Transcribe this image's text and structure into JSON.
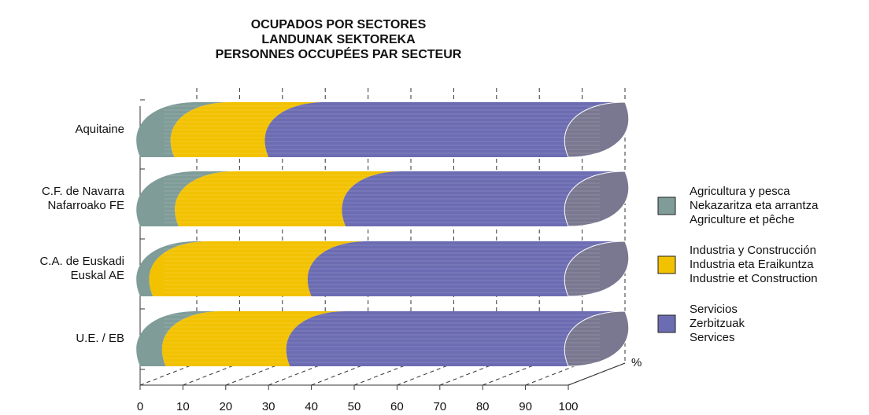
{
  "chart_data": {
    "type": "bar",
    "orientation": "horizontal",
    "stacked": true,
    "title": "OCUPADOS POR SECTORES\nLANDUNAK SEKTOREKA\nPERSONNES OCCUPÉES PAR SECTEUR",
    "x_label": "%",
    "categories": [
      "Aquitaine",
      "C.F. de Navarra\nNafarroako FE",
      "C.A. de Euskadi\nEuskal AE",
      "U.E. / EB"
    ],
    "series": [
      {
        "name": "Agricultura y pesca\nNekazaritza eta arrantza\nAgriculture et pêche",
        "color": "#7f9c98",
        "values": [
          8,
          9,
          3,
          6
        ]
      },
      {
        "name": "Industria y Construcción\nIndustria eta Eraikuntza\nIndustrie et Construction",
        "color": "#f2c200",
        "values": [
          22,
          39,
          37,
          29
        ]
      },
      {
        "name": "Servicios\nZerbitzuak\nServices",
        "color": "#6c6cb2",
        "values": [
          70,
          52,
          60,
          65
        ]
      }
    ],
    "xlim": [
      0,
      100
    ],
    "xticks": [
      0,
      10,
      20,
      30,
      40,
      50,
      60,
      70,
      80,
      90,
      100
    ],
    "grid": true,
    "legend": "right"
  }
}
